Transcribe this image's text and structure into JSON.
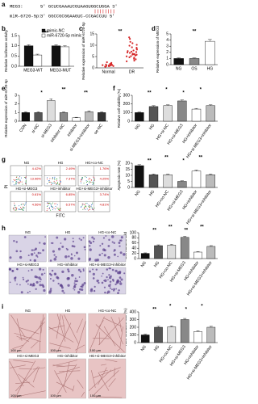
{
  "panel_labels": [
    "a",
    "b",
    "c",
    "d",
    "e",
    "f",
    "g",
    "h",
    "i"
  ],
  "sequence": {
    "rows": [
      {
        "name": "MEG3:",
        "seq": "5' GCUCGAAAUCGUAAGUGGCUGGA 3'"
      },
      {
        "name": "miR-6720-5p:",
        "seq": "3' GGCCGCGGAAGUC-CCGACCUU 5'"
      }
    ]
  },
  "flow": {
    "y_label": "PI",
    "x_label": "FITC",
    "plots": [
      {
        "label": "NG",
        "quadrants": [
          "4.42%",
          "13.96%"
        ]
      },
      {
        "label": "HG",
        "quadrants": [
          "2.49%",
          "7.37%"
        ]
      },
      {
        "label": "HG+co-NC",
        "quadrants": [
          "1.76%",
          "4.25%"
        ]
      },
      {
        "label": "HG+si-MEG3",
        "quadrants": [
          "0.61%",
          "4.56%"
        ]
      },
      {
        "label": "HG+inhibitor",
        "quadrants": [
          "6.85%",
          "6.57%"
        ]
      },
      {
        "label": "HG+si-MEG3+inhibitor",
        "quadrants": [
          "3.74%",
          "4.81%"
        ]
      }
    ]
  },
  "transwell": {
    "labels": [
      "NG",
      "HG",
      "HG+co-NC",
      "HG+si-MEG3",
      "HG+inhibitor",
      "HG+si-MEG3+inhibitor"
    ]
  },
  "tube": {
    "labels": [
      "NG",
      "HG",
      "HG+co-NC",
      "HG+si-MEG3",
      "HG+inhibitor",
      "HG+si-MEG3+inhibitor"
    ],
    "scale": "100 μm"
  },
  "chart_data": [
    {
      "type": "bar",
      "ylabel": "Relative luciferase activity",
      "categories": [
        "MEG3-WT",
        "MEG3-MUT"
      ],
      "series": [
        {
          "name": "mimic-NC",
          "color": "#111111",
          "values": [
            1,
            1
          ],
          "errors": [
            0.05,
            0.05
          ]
        },
        {
          "name": "miR-6720-5p mimic",
          "color": "#ffffff",
          "values": [
            0.55,
            0.95
          ],
          "errors": [
            0.04,
            0.05
          ]
        }
      ],
      "ylim": [
        0,
        1.5
      ],
      "yticks": [
        {
          "value": 0,
          "label": "0.0"
        },
        0.5,
        {
          "value": 1,
          "label": "1.0"
        },
        1.5
      ],
      "annotations": [
        "**"
      ],
      "legend": "top-right"
    },
    {
      "type": "strip",
      "ylabel": "Relative expression of miR-6720-5p",
      "categories": [
        "Normal",
        "DR"
      ],
      "color": "#d62728",
      "values": [
        [
          1.2,
          0.8,
          1.5,
          0.6,
          1.9,
          1.1,
          0.9,
          2.2,
          1.4,
          0.7,
          1.0,
          1.7,
          1.3,
          0.5,
          2.5
        ],
        [
          3.2,
          4.5,
          5.1,
          6.0,
          7.2,
          8.4,
          5.5,
          6.8,
          9.1,
          10.2,
          4.0,
          7.7,
          6.3,
          5.8,
          8.9,
          11.5,
          12.8,
          3.8,
          6.6,
          7.4,
          9.8,
          5.2,
          4.7,
          8.1,
          10.9,
          6.1,
          7.0,
          2.9,
          13.5,
          5.9
        ]
      ],
      "ylim": [
        0,
        15
      ],
      "yticks": [
        0,
        5,
        10,
        15
      ],
      "annotations": [
        "**"
      ]
    },
    {
      "type": "bar",
      "ylabel": "Relative expression of MEG3",
      "categories": [
        "NG",
        "OS",
        "HG"
      ],
      "values": [
        1,
        1,
        3.8
      ],
      "errors": [
        0.1,
        0.1,
        0.3
      ],
      "colors": [
        "#111111",
        "#888888",
        "#ffffff"
      ],
      "ylim": [
        0,
        5
      ],
      "yticks": [
        0,
        1,
        2,
        3,
        4,
        5
      ],
      "annotations": [
        "**"
      ]
    },
    {
      "type": "bar",
      "ylabel": "Relative expression of miR-6720-5p",
      "categories": [
        "CON",
        "si-NC",
        "si-MEG3",
        "inhibitor-NC",
        "inhibitor",
        "si-MEG3+inhibitor",
        "oe-NC"
      ],
      "values": [
        1,
        1,
        2.4,
        1,
        0.4,
        1.1,
        1
      ],
      "errors": [
        0.08,
        0.08,
        0.2,
        0.08,
        0.05,
        0.1,
        0.08
      ],
      "colors": [
        "#111111",
        "#555555",
        "#dddddd",
        "#888888",
        "#ffffff",
        "#bbbbbb",
        "#333333"
      ],
      "ylim": [
        0,
        3
      ],
      "yticks": [
        0,
        1,
        2,
        3
      ],
      "annotations": [
        "*",
        "**",
        "**"
      ]
    },
    {
      "type": "bar",
      "ylabel": "Relative cell viability (%)",
      "categories": [
        "NG",
        "HG",
        "HG+si-NC",
        "HG+si-MEG3",
        "HG+inhibitor",
        "HG+si-MEG3+inhibitor"
      ],
      "values": [
        100,
        170,
        180,
        235,
        140,
        180
      ],
      "errors": [
        6,
        10,
        10,
        12,
        8,
        10
      ],
      "colors": [
        "#111111",
        "#555555",
        "#dddddd",
        "#888888",
        "#ffffff",
        "#bbbbbb"
      ],
      "ylim": [
        0,
        300
      ],
      "yticks": [
        0,
        100,
        200,
        300
      ],
      "annotations": [
        "**",
        "*",
        "*",
        "*"
      ]
    },
    {
      "type": "bar",
      "ylabel": "Apoptosis rate (%)",
      "categories": [
        "NG",
        "HG",
        "HG+co-NC",
        "HG+si-MEG3",
        "HG+inhibitor",
        "HG+si-MEG3+inhibitor"
      ],
      "values": [
        18,
        10.5,
        10.5,
        5,
        13.5,
        10.5
      ],
      "errors": [
        0.8,
        0.6,
        0.6,
        0.5,
        0.8,
        0.6
      ],
      "colors": [
        "#111111",
        "#555555",
        "#dddddd",
        "#888888",
        "#ffffff",
        "#bbbbbb"
      ],
      "ylim": [
        0,
        20
      ],
      "yticks": [
        0,
        5,
        10,
        15,
        20
      ],
      "annotations": [
        "**",
        "**",
        "*",
        "**"
      ]
    },
    {
      "type": "bar",
      "ylabel": "Cell number/field",
      "categories": [
        "NG",
        "HG",
        "HG+co-NC",
        "HG+si-MEG3",
        "HG+inhibitor",
        "HG+si-MEG3+inhibitor"
      ],
      "values": [
        20,
        50,
        52,
        82,
        25,
        47
      ],
      "errors": [
        2,
        3,
        3,
        4,
        2,
        3
      ],
      "colors": [
        "#111111",
        "#555555",
        "#dddddd",
        "#888888",
        "#ffffff",
        "#bbbbbb"
      ],
      "ylim": [
        0,
        100
      ],
      "yticks": [
        0,
        20,
        40,
        60,
        80,
        100
      ],
      "annotations": [
        "**",
        "**",
        "**",
        "**"
      ]
    },
    {
      "type": "bar",
      "ylabel": "Tube formation rate (%)",
      "categories": [
        "NG",
        "HG",
        "HG+co-NC",
        "HG+si-MEG3",
        "HG+inhibitor",
        "HG+si-MEG3+inhibitor"
      ],
      "values": [
        100,
        200,
        205,
        300,
        145,
        200
      ],
      "errors": [
        8,
        12,
        12,
        15,
        10,
        12
      ],
      "colors": [
        "#111111",
        "#555555",
        "#dddddd",
        "#888888",
        "#ffffff",
        "#bbbbbb"
      ],
      "ylim": [
        0,
        400
      ],
      "yticks": [
        0,
        100,
        200,
        300,
        400
      ],
      "annotations": [
        "**",
        "*",
        "*",
        "*"
      ]
    }
  ]
}
